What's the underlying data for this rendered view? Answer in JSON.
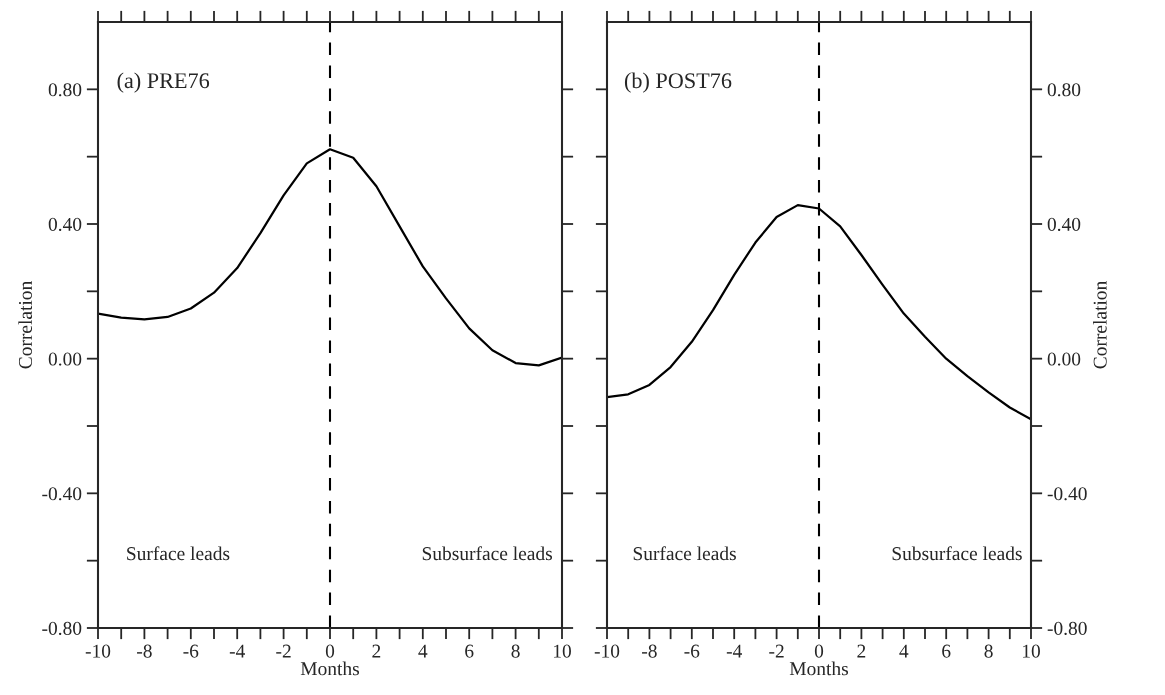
{
  "chart_data": [
    {
      "type": "line",
      "title": "(a) PRE76",
      "xlabel": "Months",
      "ylabel": "Correlation",
      "x": [
        -10,
        -9,
        -8,
        -7,
        -6,
        -5,
        -4,
        -3,
        -2,
        -1,
        0,
        1,
        2,
        3,
        4,
        5,
        6,
        7,
        8,
        9,
        10
      ],
      "series": [
        {
          "color": "#000000",
          "values": [
            0.134,
            0.122,
            0.117,
            0.124,
            0.149,
            0.196,
            0.269,
            0.373,
            0.485,
            0.58,
            0.622,
            0.597,
            0.512,
            0.393,
            0.274,
            0.179,
            0.09,
            0.025,
            -0.013,
            -0.02,
            0.003
          ]
        }
      ],
      "xlim": [
        -10,
        10
      ],
      "ylim": [
        -0.8,
        1.0
      ],
      "xticks": [
        -10,
        {
          "value": -9,
          "label": null
        },
        -8,
        {
          "value": -7,
          "label": null
        },
        -6,
        {
          "value": -5,
          "label": null
        },
        -4,
        {
          "value": -3,
          "label": null
        },
        -2,
        {
          "value": -1,
          "label": null
        },
        0,
        {
          "value": 1,
          "label": null
        },
        2,
        {
          "value": 3,
          "label": null
        },
        4,
        {
          "value": 5,
          "label": null
        },
        6,
        {
          "value": 7,
          "label": null
        },
        8,
        {
          "value": 9,
          "label": null
        },
        10
      ],
      "yticks": [
        {
          "value": -0.8,
          "label": "-0.80"
        },
        {
          "value": -0.6,
          "label": null
        },
        {
          "value": -0.4,
          "label": "-0.40"
        },
        {
          "value": -0.2,
          "label": null
        },
        {
          "value": 0,
          "label": "0.00"
        },
        {
          "value": 0.2,
          "label": null
        },
        {
          "value": 0.4,
          "label": "0.40"
        },
        {
          "value": 0.6,
          "label": null
        },
        {
          "value": 0.8,
          "label": "0.80"
        }
      ],
      "ref_lines": [
        {
          "axis": "x",
          "value": 0,
          "line_style": "dashed",
          "color": "#000000"
        }
      ],
      "annotations": [
        "Surface leads",
        "Subsurface leads"
      ],
      "grid": false,
      "legend": false,
      "marker": "none",
      "line_style": "solid"
    },
    {
      "type": "line",
      "title": "(b) POST76",
      "xlabel": "Months",
      "ylabel": "Correlation",
      "x": [
        -10,
        -9,
        -8,
        -7,
        -6,
        -5,
        -4,
        -3,
        -2,
        -1,
        0,
        1,
        2,
        3,
        4,
        5,
        6,
        7,
        8,
        9,
        10
      ],
      "series": [
        {
          "color": "#000000",
          "values": [
            -0.114,
            -0.106,
            -0.078,
            -0.025,
            0.05,
            0.144,
            0.249,
            0.345,
            0.421,
            0.456,
            0.446,
            0.393,
            0.308,
            0.219,
            0.134,
            0.065,
            0.0,
            -0.052,
            -0.1,
            -0.145,
            -0.18
          ]
        }
      ],
      "xlim": [
        -10,
        10
      ],
      "ylim": [
        -0.8,
        1.0
      ],
      "xticks": [
        -10,
        {
          "value": -9,
          "label": null
        },
        -8,
        {
          "value": -7,
          "label": null
        },
        -6,
        {
          "value": -5,
          "label": null
        },
        -4,
        {
          "value": -3,
          "label": null
        },
        -2,
        {
          "value": -1,
          "label": null
        },
        0,
        {
          "value": 1,
          "label": null
        },
        2,
        {
          "value": 3,
          "label": null
        },
        4,
        {
          "value": 5,
          "label": null
        },
        6,
        {
          "value": 7,
          "label": null
        },
        8,
        {
          "value": 9,
          "label": null
        },
        10
      ],
      "yticks": [
        {
          "value": -0.8,
          "label": "-0.80"
        },
        {
          "value": -0.6,
          "label": null
        },
        {
          "value": -0.4,
          "label": "-0.40"
        },
        {
          "value": -0.2,
          "label": null
        },
        {
          "value": 0,
          "label": "0.00"
        },
        {
          "value": 0.2,
          "label": null
        },
        {
          "value": 0.4,
          "label": "0.40"
        },
        {
          "value": 0.6,
          "label": null
        },
        {
          "value": 0.8,
          "label": "0.80"
        }
      ],
      "ref_lines": [
        {
          "axis": "x",
          "value": 0,
          "line_style": "dashed",
          "color": "#000000"
        }
      ],
      "annotations": [
        "Surface leads",
        "Subsurface leads"
      ],
      "grid": false,
      "legend": false,
      "marker": "none",
      "line_style": "solid"
    }
  ]
}
